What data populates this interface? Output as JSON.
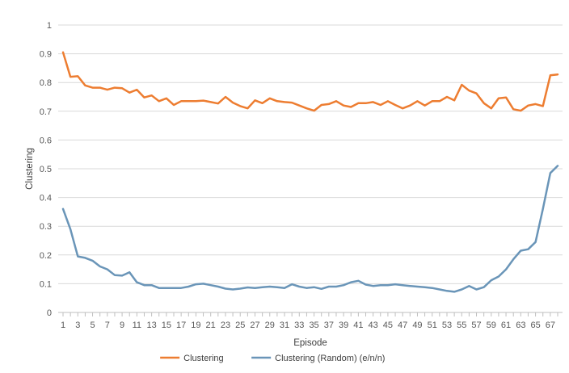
{
  "chart_data": {
    "type": "line",
    "title": "",
    "xlabel": "Episode",
    "ylabel": "Clustering",
    "ylim": [
      0,
      1
    ],
    "yticks": [
      "0",
      "0.1",
      "0.2",
      "0.3",
      "0.4",
      "0.5",
      "0.6",
      "0.7",
      "0.8",
      "0.9",
      "1"
    ],
    "x": [
      1,
      2,
      3,
      4,
      5,
      6,
      7,
      8,
      9,
      10,
      11,
      12,
      13,
      14,
      15,
      16,
      17,
      18,
      19,
      20,
      21,
      22,
      23,
      24,
      25,
      26,
      27,
      28,
      29,
      30,
      31,
      32,
      33,
      34,
      35,
      36,
      37,
      38,
      39,
      40,
      41,
      42,
      43,
      44,
      45,
      46,
      47,
      48,
      49,
      50,
      51,
      52,
      53,
      54,
      55,
      56,
      57,
      58,
      59,
      60,
      61,
      62,
      63,
      64,
      65,
      66,
      67,
      68
    ],
    "xtick_labels": [
      "1",
      "3",
      "5",
      "7",
      "9",
      "11",
      "13",
      "15",
      "17",
      "19",
      "21",
      "23",
      "25",
      "27",
      "29",
      "31",
      "33",
      "35",
      "37",
      "39",
      "41",
      "43",
      "45",
      "47",
      "49",
      "51",
      "53",
      "55",
      "57",
      "59",
      "61",
      "63",
      "65",
      "67"
    ],
    "grid": "horizontal",
    "legend_position": "bottom",
    "series": [
      {
        "name": "Clustering",
        "color": "#ED7D31",
        "values": [
          0.905,
          0.82,
          0.822,
          0.79,
          0.782,
          0.782,
          0.775,
          0.782,
          0.78,
          0.765,
          0.775,
          0.748,
          0.755,
          0.735,
          0.745,
          0.722,
          0.735,
          0.735,
          0.735,
          0.737,
          0.732,
          0.727,
          0.75,
          0.73,
          0.718,
          0.71,
          0.738,
          0.728,
          0.745,
          0.735,
          0.732,
          0.73,
          0.72,
          0.71,
          0.702,
          0.722,
          0.725,
          0.735,
          0.72,
          0.715,
          0.728,
          0.728,
          0.732,
          0.722,
          0.735,
          0.722,
          0.71,
          0.72,
          0.735,
          0.72,
          0.735,
          0.735,
          0.75,
          0.738,
          0.792,
          0.772,
          0.762,
          0.728,
          0.71,
          0.745,
          0.748,
          0.707,
          0.702,
          0.72,
          0.725,
          0.718,
          0.825,
          0.828
        ]
      },
      {
        "name": "Clustering (Random) (e/n/n)",
        "color": "#6A95B8",
        "values": [
          0.36,
          0.29,
          0.195,
          0.19,
          0.18,
          0.16,
          0.15,
          0.13,
          0.128,
          0.14,
          0.105,
          0.095,
          0.095,
          0.085,
          0.085,
          0.085,
          0.085,
          0.09,
          0.098,
          0.1,
          0.095,
          0.09,
          0.083,
          0.08,
          0.083,
          0.087,
          0.085,
          0.088,
          0.09,
          0.088,
          0.085,
          0.098,
          0.09,
          0.085,
          0.088,
          0.082,
          0.09,
          0.09,
          0.095,
          0.105,
          0.11,
          0.097,
          0.092,
          0.095,
          0.095,
          0.098,
          0.095,
          0.092,
          0.09,
          0.088,
          0.085,
          0.08,
          0.075,
          0.072,
          0.08,
          0.092,
          0.08,
          0.088,
          0.112,
          0.125,
          0.15,
          0.185,
          0.215,
          0.22,
          0.245,
          0.36,
          0.485,
          0.51
        ]
      }
    ]
  }
}
